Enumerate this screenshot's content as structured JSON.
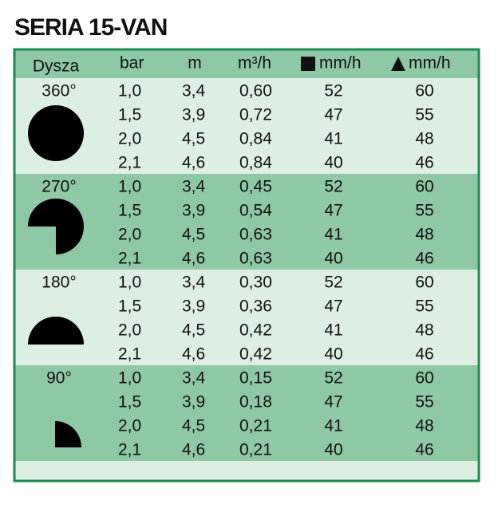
{
  "title": "SERIA 15-VAN",
  "table": {
    "header": [
      "Dysza",
      "bar",
      "m",
      "m³/h",
      "mm/h",
      "mm/h"
    ],
    "groups": [
      {
        "nozzle": "360°",
        "rows": [
          [
            "1,0",
            "3,4",
            "0,60",
            "52",
            "60"
          ],
          [
            "1,5",
            "3,9",
            "0,72",
            "47",
            "55"
          ],
          [
            "2,0",
            "4,5",
            "0,84",
            "41",
            "48"
          ],
          [
            "2,1",
            "4,6",
            "0,84",
            "40",
            "46"
          ]
        ]
      },
      {
        "nozzle": "270°",
        "rows": [
          [
            "1,0",
            "3,4",
            "0,45",
            "52",
            "60"
          ],
          [
            "1,5",
            "3,9",
            "0,54",
            "47",
            "55"
          ],
          [
            "2,0",
            "4,5",
            "0,63",
            "41",
            "48"
          ],
          [
            "2,1",
            "4,6",
            "0,63",
            "40",
            "46"
          ]
        ]
      },
      {
        "nozzle": "180°",
        "rows": [
          [
            "1,0",
            "3,4",
            "0,30",
            "52",
            "60"
          ],
          [
            "1,5",
            "3,9",
            "0,36",
            "47",
            "55"
          ],
          [
            "2,0",
            "4,5",
            "0,42",
            "41",
            "48"
          ],
          [
            "2,1",
            "4,6",
            "0,42",
            "40",
            "46"
          ]
        ]
      },
      {
        "nozzle": "90°",
        "rows": [
          [
            "1,0",
            "3,4",
            "0,15",
            "52",
            "60"
          ],
          [
            "1,5",
            "3,9",
            "0,18",
            "47",
            "55"
          ],
          [
            "2,0",
            "4,5",
            "0,21",
            "41",
            "48"
          ],
          [
            "2,1",
            "4,6",
            "0,21",
            "40",
            "46"
          ]
        ]
      }
    ]
  }
}
